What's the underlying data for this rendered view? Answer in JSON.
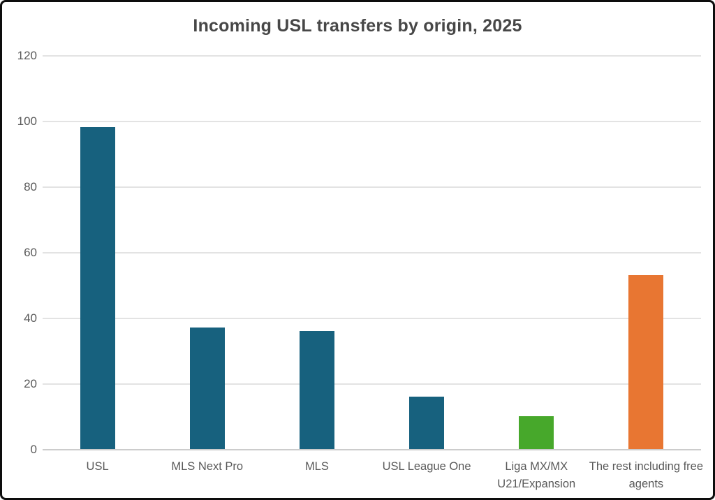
{
  "page": {
    "background_color": "#ffffff",
    "frame_border_color": "#0d0d0d"
  },
  "chart_data": {
    "type": "bar",
    "title": "Incoming USL transfers by origin, 2025",
    "categories": [
      "USL",
      "MLS Next Pro",
      "MLS",
      "USL League One",
      "Liga MX/MX U21/Expansion",
      "The rest including free agents"
    ],
    "values": [
      98,
      37,
      36,
      16,
      10,
      53
    ],
    "bar_colors": [
      "#17617E",
      "#17617E",
      "#17617E",
      "#17617E",
      "#47A82B",
      "#E87632"
    ],
    "xlabel": "",
    "ylabel": "",
    "ylim": [
      0,
      120
    ],
    "yticks": [
      0,
      20,
      40,
      60,
      80,
      100,
      120
    ],
    "grid": "horizontal-only",
    "gridline_color": "#e3e3e3",
    "baseline_color": "#cccccc",
    "title_color": "#474747",
    "tick_label_color": "#595959",
    "legend_position": "none"
  }
}
